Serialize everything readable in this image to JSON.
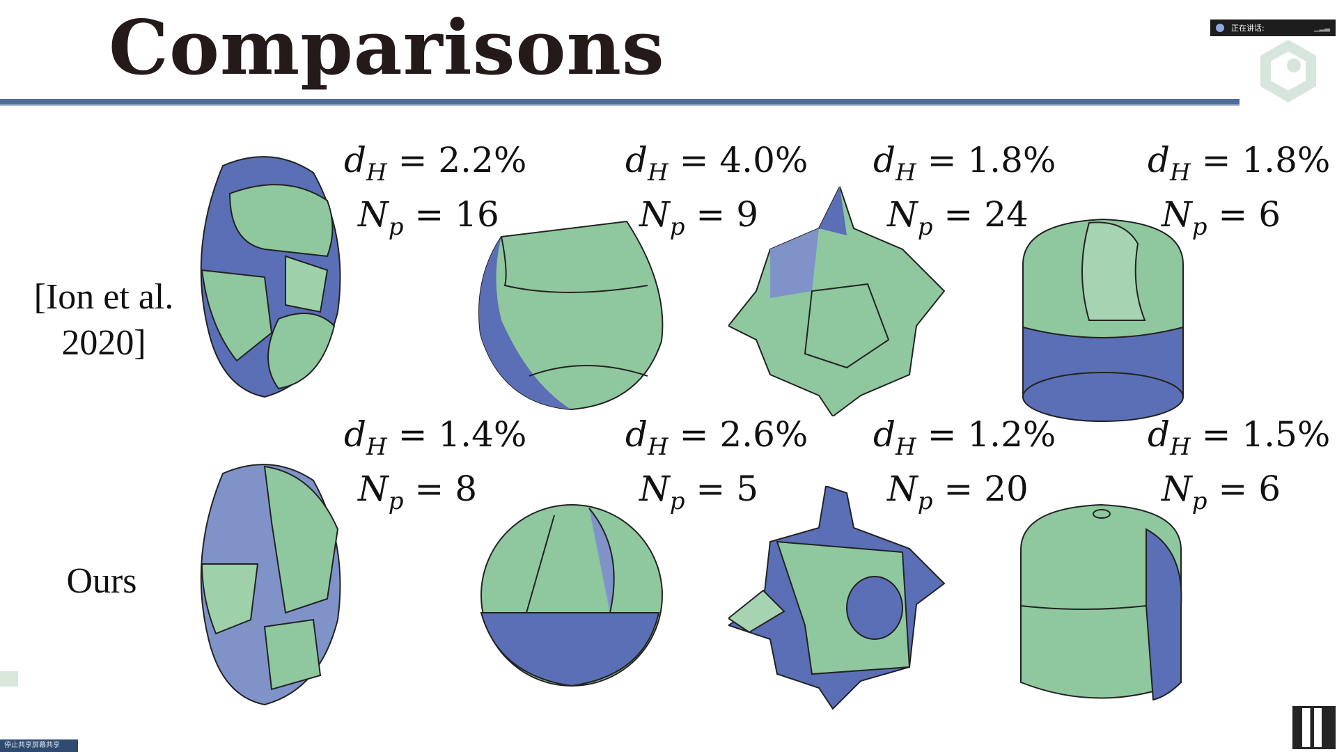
{
  "title": "Comparisons",
  "overlay": {
    "speaking_label": "正在讲话:",
    "share_label": "停止共享屏幕共享"
  },
  "rows": [
    {
      "label_line1": "[Ion et al.",
      "label_line2": "2020]",
      "metrics": [
        {
          "dh": "2.2%",
          "np": "16"
        },
        {
          "dh": "4.0%",
          "np": "9"
        },
        {
          "dh": "1.8%",
          "np": "24"
        },
        {
          "dh": "1.8%",
          "np": "6"
        }
      ]
    },
    {
      "label_line1": "Ours",
      "label_line2": "",
      "metrics": [
        {
          "dh": "1.4%",
          "np": "8"
        },
        {
          "dh": "2.6%",
          "np": "5"
        },
        {
          "dh": "1.2%",
          "np": "20"
        },
        {
          "dh": "1.5%",
          "np": "6"
        }
      ]
    }
  ],
  "symbols": {
    "dh_var": "d",
    "dh_sub": "H",
    "np_var": "N",
    "np_sub": "p",
    "eq": " = "
  },
  "colors": {
    "blue": "#5a6fb5",
    "green": "#8fc79e",
    "rule": "#4f6ba6"
  },
  "icons": [
    "mic-icon",
    "presenter-logo-icon",
    "qr-code-icon"
  ]
}
